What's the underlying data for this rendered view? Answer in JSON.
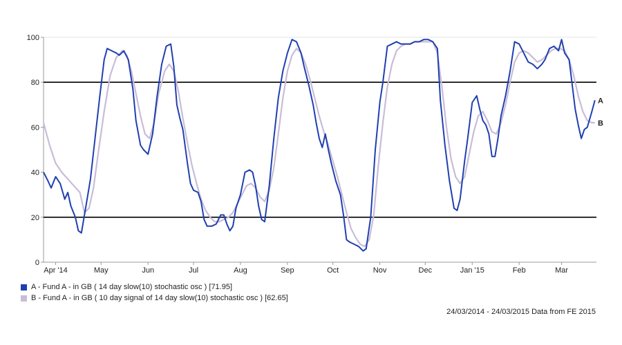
{
  "chart_data": {
    "type": "line",
    "ylim": [
      0,
      100
    ],
    "yticks": [
      0,
      20,
      40,
      60,
      80,
      100
    ],
    "xlim": [
      0,
      365
    ],
    "xticks": [
      {
        "label": "Apr '14",
        "x": 8
      },
      {
        "label": "May",
        "x": 38
      },
      {
        "label": "Jun",
        "x": 69
      },
      {
        "label": "Jul",
        "x": 99
      },
      {
        "label": "Aug",
        "x": 130
      },
      {
        "label": "Sep",
        "x": 161
      },
      {
        "label": "Oct",
        "x": 191
      },
      {
        "label": "Nov",
        "x": 222
      },
      {
        "label": "Dec",
        "x": 252
      },
      {
        "label": "Jan '15",
        "x": 283
      },
      {
        "label": "Feb",
        "x": 314
      },
      {
        "label": "Mar",
        "x": 342
      }
    ],
    "reference_lines": [
      20,
      80
    ],
    "series": [
      {
        "name": "A - Fund A - in GB ( 14 day slow(10) stochastic osc ) [71.95]",
        "marker": "A",
        "color": "#1f3fb0",
        "points": [
          [
            0,
            40
          ],
          [
            3,
            36
          ],
          [
            5,
            33
          ],
          [
            8,
            38
          ],
          [
            11,
            35
          ],
          [
            14,
            28
          ],
          [
            16,
            31
          ],
          [
            18,
            25
          ],
          [
            21,
            20
          ],
          [
            23,
            14
          ],
          [
            25,
            13
          ],
          [
            28,
            25
          ],
          [
            31,
            37
          ],
          [
            34,
            55
          ],
          [
            37,
            73
          ],
          [
            40,
            90
          ],
          [
            42,
            95
          ],
          [
            45,
            94
          ],
          [
            48,
            93
          ],
          [
            50,
            92
          ],
          [
            53,
            94
          ],
          [
            56,
            90
          ],
          [
            59,
            77
          ],
          [
            61,
            63
          ],
          [
            64,
            52
          ],
          [
            66,
            50
          ],
          [
            69,
            48
          ],
          [
            72,
            57
          ],
          [
            75,
            74
          ],
          [
            78,
            88
          ],
          [
            81,
            96
          ],
          [
            84,
            97
          ],
          [
            86,
            87
          ],
          [
            88,
            70
          ],
          [
            90,
            64
          ],
          [
            92,
            59
          ],
          [
            95,
            44
          ],
          [
            97,
            35
          ],
          [
            99,
            32
          ],
          [
            102,
            31
          ],
          [
            104,
            27
          ],
          [
            106,
            19
          ],
          [
            108,
            16
          ],
          [
            111,
            16
          ],
          [
            114,
            17
          ],
          [
            117,
            21
          ],
          [
            119,
            21
          ],
          [
            121,
            17
          ],
          [
            123,
            14
          ],
          [
            125,
            16
          ],
          [
            127,
            24
          ],
          [
            130,
            30
          ],
          [
            133,
            40
          ],
          [
            136,
            41
          ],
          [
            138,
            40
          ],
          [
            140,
            34
          ],
          [
            142,
            25
          ],
          [
            144,
            19
          ],
          [
            146,
            18
          ],
          [
            149,
            34
          ],
          [
            152,
            55
          ],
          [
            155,
            73
          ],
          [
            158,
            85
          ],
          [
            161,
            93
          ],
          [
            164,
            99
          ],
          [
            167,
            98
          ],
          [
            170,
            93
          ],
          [
            172,
            87
          ],
          [
            175,
            79
          ],
          [
            178,
            70
          ],
          [
            180,
            62
          ],
          [
            182,
            55
          ],
          [
            184,
            51
          ],
          [
            186,
            57
          ],
          [
            188,
            50
          ],
          [
            190,
            44
          ],
          [
            193,
            36
          ],
          [
            196,
            30
          ],
          [
            198,
            21
          ],
          [
            200,
            10
          ],
          [
            202,
            9
          ],
          [
            205,
            8
          ],
          [
            208,
            7
          ],
          [
            211,
            5
          ],
          [
            213,
            6
          ],
          [
            216,
            20
          ],
          [
            219,
            50
          ],
          [
            222,
            71
          ],
          [
            224,
            80
          ],
          [
            227,
            96
          ],
          [
            230,
            97
          ],
          [
            233,
            98
          ],
          [
            236,
            97
          ],
          [
            239,
            97
          ],
          [
            242,
            97
          ],
          [
            245,
            98
          ],
          [
            248,
            98
          ],
          [
            251,
            99
          ],
          [
            254,
            99
          ],
          [
            257,
            98
          ],
          [
            260,
            95
          ],
          [
            262,
            72
          ],
          [
            265,
            52
          ],
          [
            268,
            36
          ],
          [
            271,
            24
          ],
          [
            273,
            23
          ],
          [
            275,
            28
          ],
          [
            278,
            45
          ],
          [
            280,
            55
          ],
          [
            283,
            71
          ],
          [
            286,
            74
          ],
          [
            288,
            68
          ],
          [
            290,
            63
          ],
          [
            292,
            61
          ],
          [
            294,
            57
          ],
          [
            296,
            47
          ],
          [
            298,
            47
          ],
          [
            300,
            55
          ],
          [
            302,
            65
          ],
          [
            305,
            74
          ],
          [
            308,
            85
          ],
          [
            311,
            98
          ],
          [
            314,
            97
          ],
          [
            317,
            93
          ],
          [
            320,
            89
          ],
          [
            323,
            88
          ],
          [
            326,
            86
          ],
          [
            329,
            88
          ],
          [
            331,
            90
          ],
          [
            334,
            95
          ],
          [
            337,
            96
          ],
          [
            340,
            94
          ],
          [
            342,
            99
          ],
          [
            344,
            93
          ],
          [
            347,
            90
          ],
          [
            349,
            79
          ],
          [
            351,
            68
          ],
          [
            353,
            61
          ],
          [
            355,
            55
          ],
          [
            357,
            59
          ],
          [
            359,
            60
          ],
          [
            362,
            67
          ],
          [
            364,
            72
          ]
        ]
      },
      {
        "name": "B - Fund A - in GB ( 10 day signal of 14 day slow(10) stochastic osc ) [62.65]",
        "marker": "B",
        "color": "#c8bcd8",
        "points": [
          [
            0,
            62
          ],
          [
            4,
            52
          ],
          [
            8,
            44
          ],
          [
            12,
            40
          ],
          [
            16,
            37
          ],
          [
            20,
            34
          ],
          [
            24,
            31
          ],
          [
            27,
            22
          ],
          [
            30,
            24
          ],
          [
            33,
            33
          ],
          [
            36,
            48
          ],
          [
            40,
            67
          ],
          [
            44,
            83
          ],
          [
            48,
            91
          ],
          [
            52,
            94
          ],
          [
            55,
            92
          ],
          [
            58,
            85
          ],
          [
            61,
            75
          ],
          [
            64,
            65
          ],
          [
            67,
            57
          ],
          [
            70,
            55
          ],
          [
            73,
            62
          ],
          [
            76,
            75
          ],
          [
            80,
            85
          ],
          [
            83,
            88
          ],
          [
            86,
            85
          ],
          [
            89,
            76
          ],
          [
            92,
            64
          ],
          [
            95,
            53
          ],
          [
            98,
            43
          ],
          [
            101,
            35
          ],
          [
            104,
            28
          ],
          [
            107,
            23
          ],
          [
            110,
            20
          ],
          [
            113,
            18
          ],
          [
            116,
            18
          ],
          [
            119,
            19
          ],
          [
            122,
            20
          ],
          [
            125,
            22
          ],
          [
            128,
            26
          ],
          [
            131,
            30
          ],
          [
            134,
            34
          ],
          [
            137,
            35
          ],
          [
            140,
            33
          ],
          [
            143,
            29
          ],
          [
            146,
            27
          ],
          [
            149,
            32
          ],
          [
            152,
            42
          ],
          [
            155,
            57
          ],
          [
            158,
            73
          ],
          [
            161,
            85
          ],
          [
            164,
            92
          ],
          [
            167,
            95
          ],
          [
            170,
            93
          ],
          [
            173,
            88
          ],
          [
            176,
            81
          ],
          [
            179,
            73
          ],
          [
            182,
            65
          ],
          [
            185,
            58
          ],
          [
            188,
            52
          ],
          [
            191,
            45
          ],
          [
            194,
            38
          ],
          [
            197,
            30
          ],
          [
            200,
            22
          ],
          [
            203,
            15
          ],
          [
            206,
            11
          ],
          [
            209,
            8
          ],
          [
            212,
            7
          ],
          [
            215,
            10
          ],
          [
            218,
            21
          ],
          [
            221,
            43
          ],
          [
            224,
            62
          ],
          [
            227,
            78
          ],
          [
            230,
            88
          ],
          [
            233,
            94
          ],
          [
            236,
            96
          ],
          [
            239,
            97
          ],
          [
            242,
            97
          ],
          [
            245,
            98
          ],
          [
            248,
            98
          ],
          [
            251,
            98
          ],
          [
            254,
            98
          ],
          [
            257,
            98
          ],
          [
            260,
            93
          ],
          [
            263,
            78
          ],
          [
            266,
            60
          ],
          [
            269,
            46
          ],
          [
            272,
            38
          ],
          [
            275,
            35
          ],
          [
            278,
            38
          ],
          [
            281,
            48
          ],
          [
            284,
            58
          ],
          [
            287,
            65
          ],
          [
            290,
            67
          ],
          [
            293,
            63
          ],
          [
            296,
            58
          ],
          [
            299,
            57
          ],
          [
            302,
            62
          ],
          [
            305,
            70
          ],
          [
            308,
            80
          ],
          [
            311,
            89
          ],
          [
            314,
            93
          ],
          [
            317,
            94
          ],
          [
            320,
            93
          ],
          [
            323,
            91
          ],
          [
            326,
            89
          ],
          [
            329,
            90
          ],
          [
            332,
            92
          ],
          [
            335,
            94
          ],
          [
            338,
            95
          ],
          [
            341,
            95
          ],
          [
            344,
            94
          ],
          [
            347,
            90
          ],
          [
            350,
            83
          ],
          [
            353,
            74
          ],
          [
            356,
            67
          ],
          [
            359,
            63
          ],
          [
            362,
            62
          ],
          [
            364,
            62
          ]
        ]
      }
    ]
  },
  "footer_text": "24/03/2014 - 24/03/2015 Data from FE 2015"
}
